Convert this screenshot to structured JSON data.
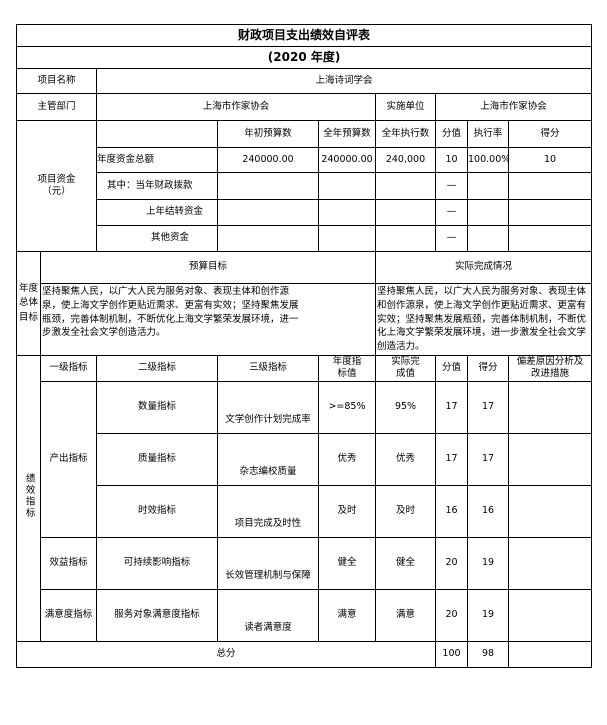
{
  "title": "财政项目支出绩效自评表",
  "subtitle": "(2020 年度)",
  "project": {
    "name_label": "项目名称",
    "name": "上海诗词学会",
    "dept_label": "主管部门",
    "dept": "上海市作家协会",
    "impl_label": "实施单位",
    "impl": "上海市作家协会"
  },
  "funds": {
    "label": "项目资金（元）",
    "headers": [
      "年初预算数",
      "全年预算数",
      "全年执行数",
      "分值",
      "执行率",
      "得分"
    ],
    "rows": [
      {
        "name": "年度资金总额",
        "initial": "240000.00",
        "annual": "240000.00",
        "executed": "240,000",
        "weight": "10",
        "rate": "100.00%",
        "score": "10"
      },
      {
        "name": "其中：当年财政拨款",
        "initial": "",
        "annual": "",
        "executed": "",
        "weight": "—",
        "rate": "",
        "score": ""
      },
      {
        "name": "上年结转资金",
        "initial": "",
        "annual": "",
        "executed": "",
        "weight": "—",
        "rate": "",
        "score": ""
      },
      {
        "name": "其他资金",
        "initial": "",
        "annual": "",
        "executed": "",
        "weight": "—",
        "rate": "",
        "score": ""
      }
    ]
  },
  "goals": {
    "label": "年度总体目标",
    "budget_label": "预算目标",
    "actual_label": "实际完成情况",
    "budget_text": "坚持聚焦人民，以广大人民为服务对象、表现主体和创作源泉，使上海文学创作更贴近需求、更富有实效；坚持聚焦发展瓶颈，完善体制机制，不断优化上海文学繁荣发展环境，进一步激发全社会文学创造活力。",
    "actual_text": "坚持聚焦人民，以广大人民为服务对象、表现主体和创作源泉，使上海文学创作更贴近需求、更富有实效；坚持聚焦发展瓶颈，完善体制机制，不断优化上海文学繁荣发展环境，进一步激发全社会文学创造活力。"
  },
  "indicators": {
    "label": "绩效指标",
    "headers": [
      "一级指标",
      "二级指标",
      "三级指标",
      "年度指标值",
      "实际完成值",
      "分值",
      "得分",
      "偏差原因分析及改进措施"
    ],
    "level1": [
      "产出指标",
      "效益指标",
      "满意度指标"
    ],
    "rows": [
      {
        "l2": "数量指标",
        "l3": "文学创作计划完成率",
        "target": ">=85%",
        "actual": "95%",
        "weight": "17",
        "score": "17",
        "note": ""
      },
      {
        "l2": "质量指标",
        "l3": "杂志编校质量",
        "target": "优秀",
        "actual": "优秀",
        "weight": "17",
        "score": "17",
        "note": ""
      },
      {
        "l2": "时效指标",
        "l3": "项目完成及时性",
        "target": "及时",
        "actual": "及时",
        "weight": "16",
        "score": "16",
        "note": ""
      },
      {
        "l2": "可持续影响指标",
        "l3": "长效管理机制与保障",
        "target": "健全",
        "actual": "健全",
        "weight": "20",
        "score": "19",
        "note": ""
      },
      {
        "l2": "服务对象满意度指标",
        "l3": "读者满意度",
        "target": "满意",
        "actual": "满意",
        "weight": "20",
        "score": "19",
        "note": ""
      }
    ],
    "total_label": "总分",
    "total_weight": "100",
    "total_score": "98"
  }
}
